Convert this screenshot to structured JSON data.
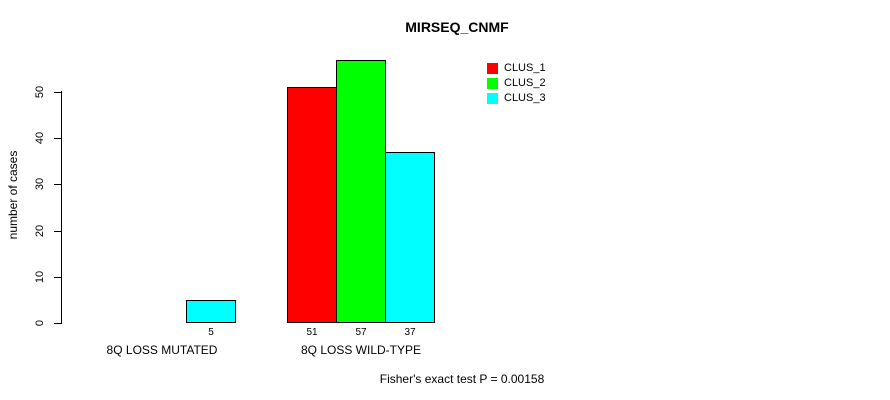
{
  "chart_data": {
    "type": "bar",
    "title": "MIRSEQ_CNMF",
    "xlabel": "",
    "ylabel": "number of cases",
    "categories": [
      "8Q LOSS MUTATED",
      "8Q LOSS WILD-TYPE"
    ],
    "series": [
      {
        "name": "CLUS_1",
        "color": "#ff0000",
        "values": [
          0,
          51
        ]
      },
      {
        "name": "CLUS_2",
        "color": "#00ff00",
        "values": [
          0,
          57
        ]
      },
      {
        "name": "CLUS_3",
        "color": "#00ffff",
        "values": [
          5,
          37
        ]
      }
    ],
    "bar_value_labels_shown": [
      "5",
      "51",
      "57",
      "37"
    ],
    "yticks": [
      0,
      10,
      20,
      30,
      40,
      50
    ],
    "ylim": [
      0,
      57
    ],
    "grid": false,
    "legend_position": "top-right",
    "bar_border_color": "#000000",
    "background_color": "#ffffff",
    "annotation": "Fisher's exact test P = 0.00158"
  }
}
